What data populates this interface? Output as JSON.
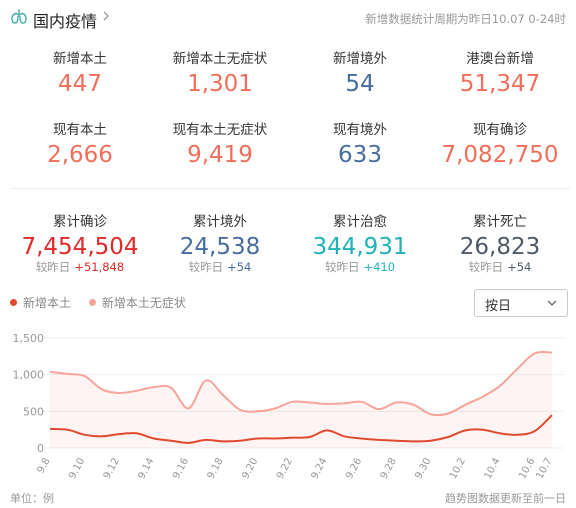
{
  "header": {
    "title": "国内疫情",
    "period": "新增数据统计周期为昨日10.07 0-24时"
  },
  "rows": [
    [
      {
        "label": "新增本土",
        "value": "447",
        "color": "#f16e5a"
      },
      {
        "label": "新增本土无症状",
        "value": "1,301",
        "color": "#f16e5a"
      },
      {
        "label": "新增境外",
        "value": "54",
        "color": "#476da0"
      },
      {
        "label": "港澳台新增",
        "value": "51,347",
        "color": "#f16e5a"
      }
    ],
    [
      {
        "label": "现有本土",
        "value": "2,666",
        "color": "#f16e5a"
      },
      {
        "label": "现有本土无症状",
        "value": "9,419",
        "color": "#f16e5a"
      },
      {
        "label": "现有境外",
        "value": "633",
        "color": "#476da0"
      },
      {
        "label": "现有确诊",
        "value": "7,082,750",
        "color": "#f16e5a"
      }
    ]
  ],
  "totals": [
    {
      "label": "累计确诊",
      "value": "7,454,504",
      "delta_label": "较昨日",
      "delta": "+51,848",
      "color": "#e02929",
      "delta_color": "#e02929"
    },
    {
      "label": "累计境外",
      "value": "24,538",
      "delta_label": "较昨日",
      "delta": "+54",
      "color": "#476da0",
      "delta_color": "#476da0"
    },
    {
      "label": "累计治愈",
      "value": "344,931",
      "delta_label": "较昨日",
      "delta": "+410",
      "color": "#1fb3b8",
      "delta_color": "#1fb3b8"
    },
    {
      "label": "累计死亡",
      "value": "26,823",
      "delta_label": "较昨日",
      "delta": "+54",
      "color": "#4e5a68",
      "delta_color": "#4e5a68"
    }
  ],
  "legend": [
    {
      "name": "新增本土",
      "color": "#e14a2f"
    },
    {
      "name": "新增本土无症状",
      "color": "#f7a49a"
    }
  ],
  "dropdown": {
    "selected": "按日"
  },
  "chart_data": {
    "type": "line",
    "x": [
      "9.8",
      "9.9",
      "9.10",
      "9.11",
      "9.12",
      "9.13",
      "9.14",
      "9.15",
      "9.16",
      "9.17",
      "9.18",
      "9.19",
      "9.20",
      "9.21",
      "9.22",
      "9.23",
      "9.24",
      "9.25",
      "9.26",
      "9.27",
      "9.28",
      "9.29",
      "9.30",
      "10.1",
      "10.2",
      "10.3",
      "10.4",
      "10.5",
      "10.6",
      "10.7"
    ],
    "x_tick_labels": [
      "9.8",
      "9.10",
      "9.12",
      "9.14",
      "9.16",
      "9.18",
      "9.20",
      "9.22",
      "9.24",
      "9.26",
      "9.28",
      "9.30",
      "10.2",
      "10.4",
      "10.6",
      "10.7"
    ],
    "series": [
      {
        "name": "新增本土",
        "color": "#e14a2f",
        "values": [
          260,
          250,
          180,
          160,
          190,
          200,
          130,
          100,
          70,
          110,
          90,
          100,
          130,
          130,
          140,
          150,
          240,
          160,
          130,
          110,
          100,
          90,
          100,
          150,
          240,
          250,
          200,
          180,
          230,
          447
        ]
      },
      {
        "name": "新增本土无症状",
        "color": "#f7a49a",
        "values": [
          1040,
          1010,
          980,
          800,
          750,
          780,
          830,
          820,
          540,
          920,
          720,
          520,
          500,
          540,
          630,
          620,
          600,
          610,
          630,
          530,
          620,
          590,
          460,
          470,
          590,
          700,
          850,
          1080,
          1290,
          1301
        ]
      }
    ],
    "ylim": [
      0,
      1500
    ],
    "yticks": [
      "0",
      "500",
      "1,000",
      "1,500"
    ],
    "grid": true
  },
  "footer": {
    "unit": "单位：例",
    "note": "趋势图数据更新至前一日"
  }
}
